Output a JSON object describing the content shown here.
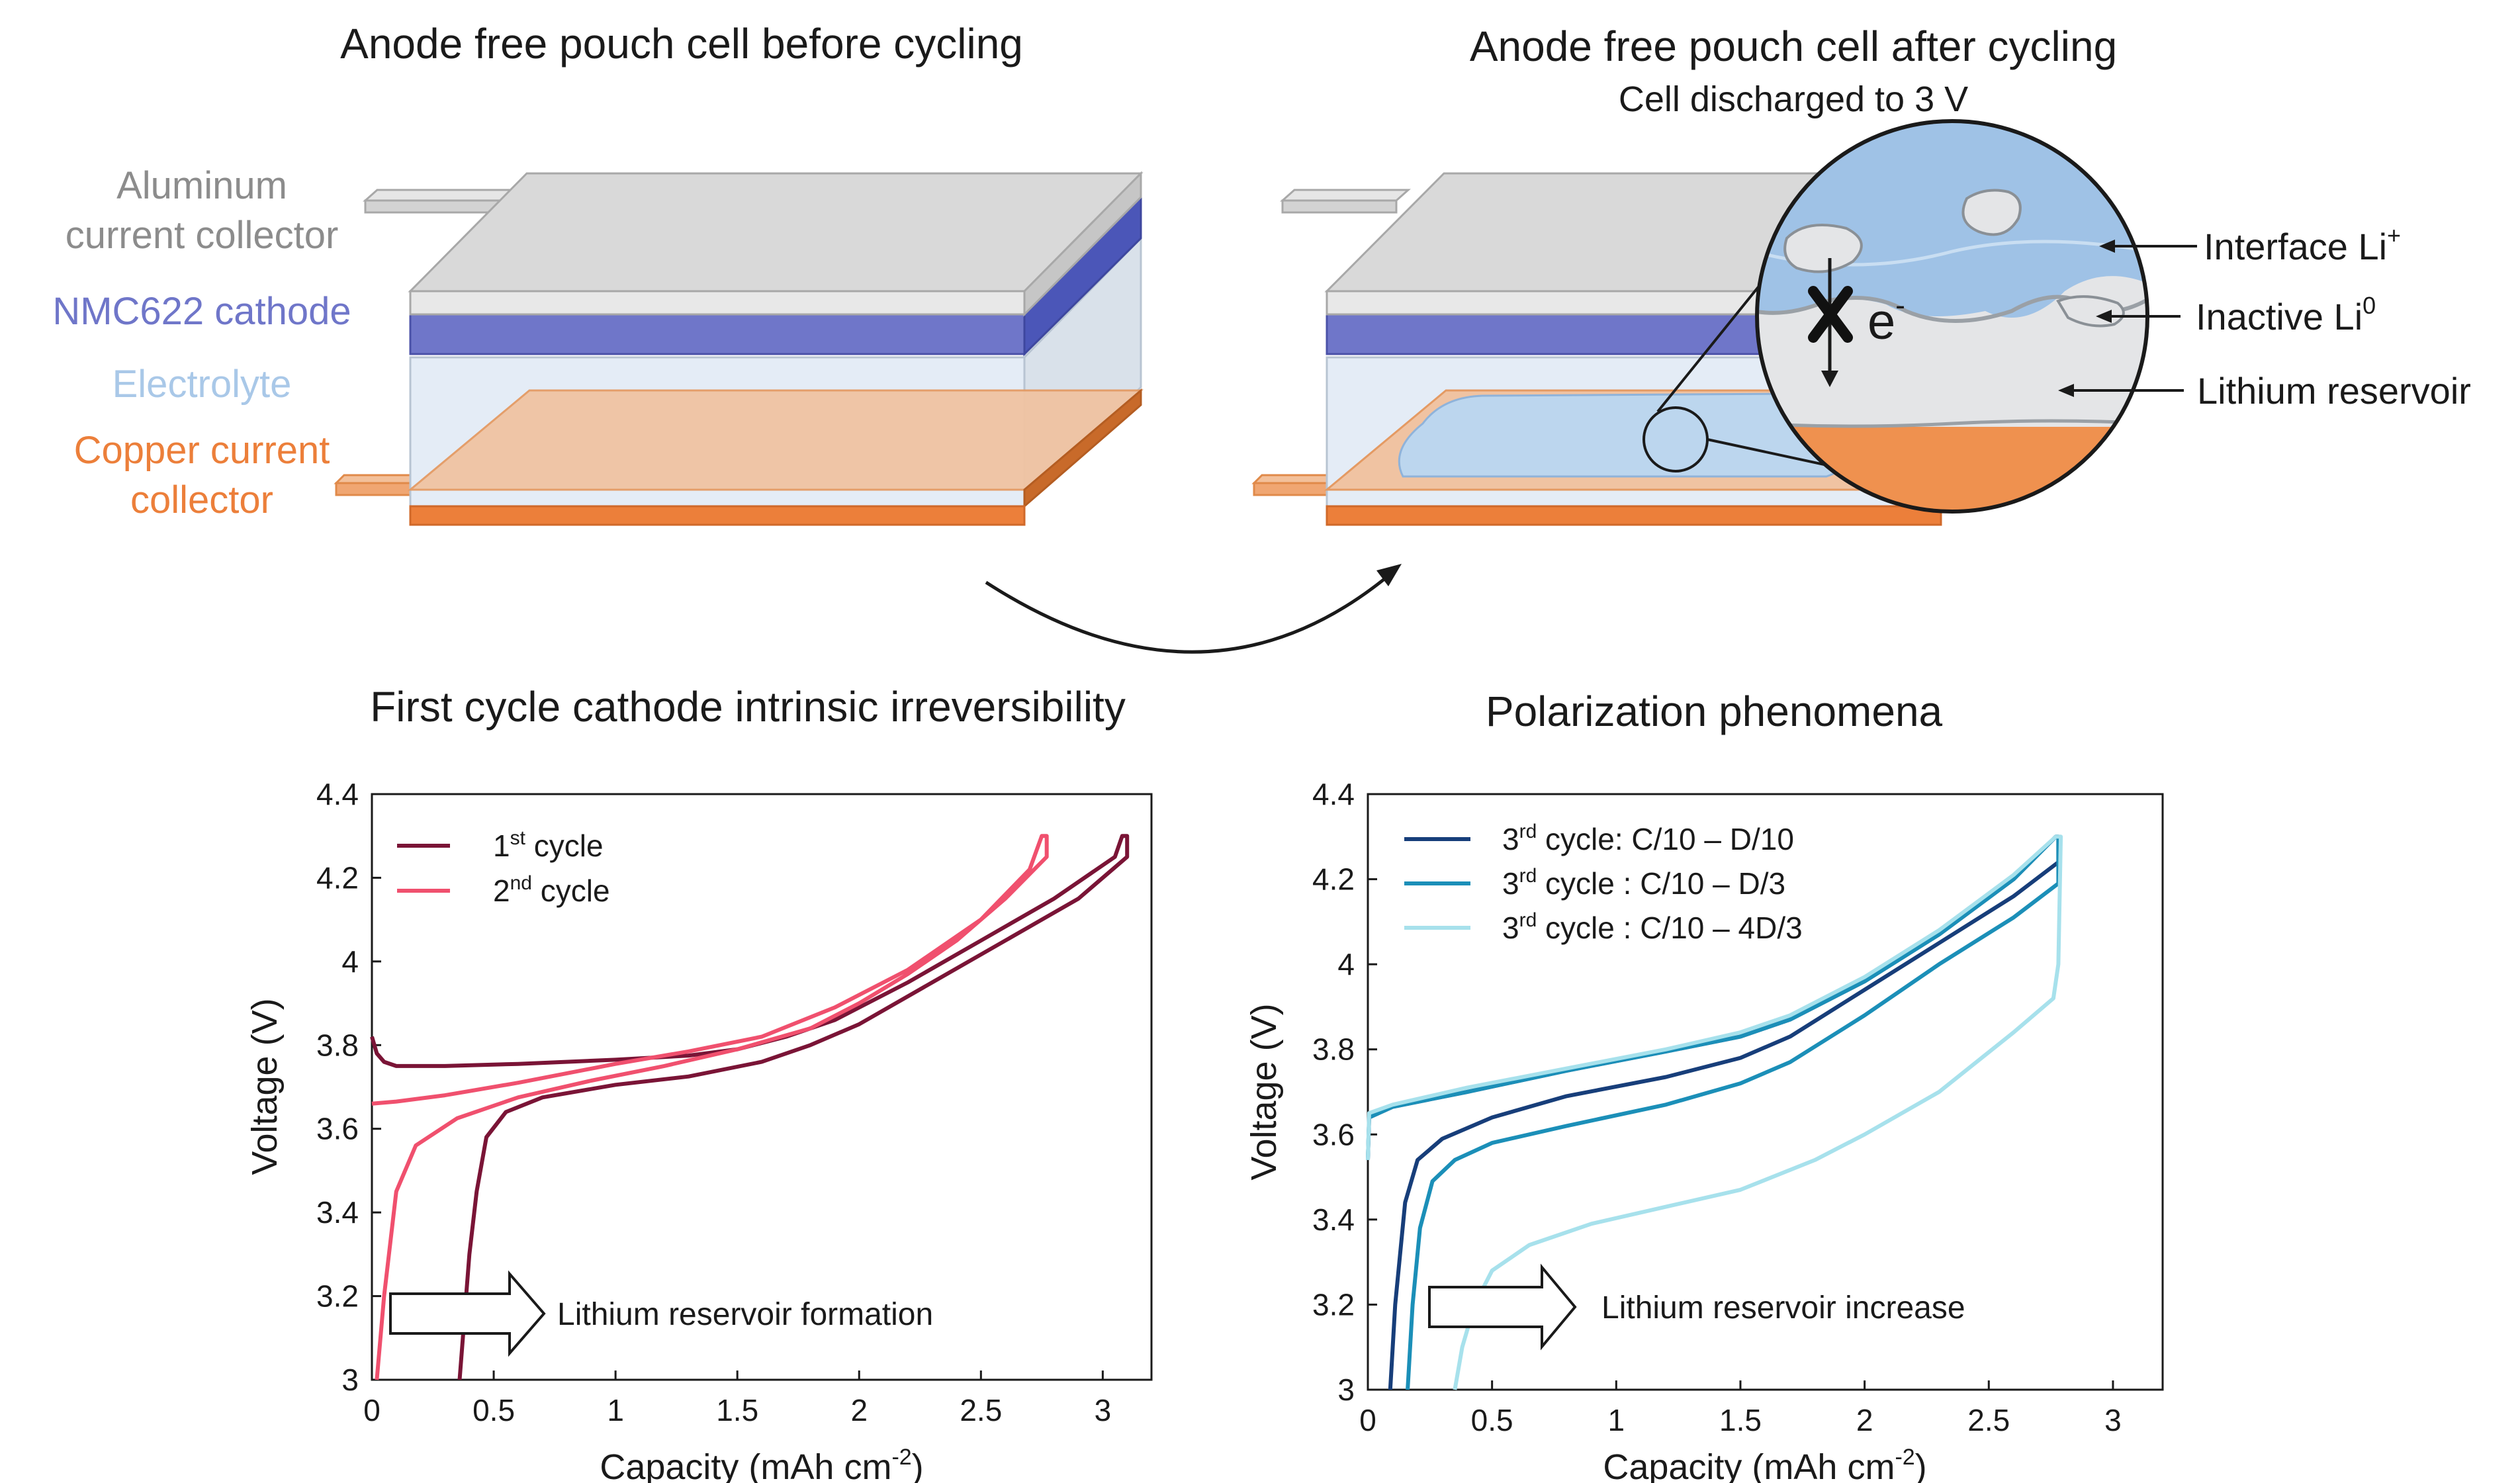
{
  "top_left": {
    "title": "Anode free pouch cell before cycling",
    "labels": {
      "aluminum_line1": "Aluminum",
      "aluminum_line2": "current collector",
      "cathode": "NMC622 cathode",
      "electrolyte": "Electrolyte",
      "copper_line1": "Copper current",
      "copper_line2": "collector"
    }
  },
  "top_right": {
    "title": "Anode free pouch cell after cycling",
    "subtitle": "Cell discharged to 3 V",
    "zoom": {
      "electron": "e",
      "electron_sup": "-",
      "interface": "Interface Li",
      "interface_sup": "+",
      "inactive": "Inactive  Li",
      "inactive_sup": "0",
      "reservoir": "Lithium reservoir"
    }
  },
  "colors": {
    "aluminum_text": "#8c8c8c",
    "cathode": "#6f76c9",
    "electrolyte_text": "#a9c8e8",
    "copper": "#ec7f3a",
    "cycle1": "#7a1436",
    "cycle2": "#f0506e",
    "rate_d10": "#173e7a",
    "rate_d3": "#1b8fb8",
    "rate_4d3": "#a7e1ec"
  },
  "chart_data": [
    {
      "type": "line",
      "title": "First cycle cathode intrinsic irreversibility",
      "xlabel": "Capacity (mAh cm",
      "xlabel_sup": "-2",
      "xlabel_end": ")",
      "ylabel": "Voltage (V)",
      "xlim": [
        0,
        3.2
      ],
      "ylim": [
        3,
        4.4
      ],
      "xticks": [
        0,
        0.5,
        1,
        1.5,
        2,
        2.5,
        3
      ],
      "xtick_labels": [
        "0",
        "0.5",
        "1",
        "1.5",
        "2",
        "2.5",
        "3"
      ],
      "yticks": [
        3,
        3.2,
        3.4,
        3.6,
        3.8,
        4,
        4.2,
        4.4
      ],
      "ytick_labels": [
        "3",
        "3.2",
        "3.4",
        "3.6",
        "3.8",
        "4",
        "4.2",
        "4.4"
      ],
      "annotation": "Lithium reservoir formation",
      "legend_position": "top-left",
      "series": [
        {
          "name_main": "1",
          "name_sup": "st",
          "name_rest": " cycle",
          "color": "#7a1436",
          "charge": [
            [
              0,
              3.82
            ],
            [
              0.02,
              3.78
            ],
            [
              0.05,
              3.76
            ],
            [
              0.1,
              3.75
            ],
            [
              0.3,
              3.75
            ],
            [
              0.6,
              3.755
            ],
            [
              1,
              3.765
            ],
            [
              1.3,
              3.775
            ],
            [
              1.5,
              3.79
            ],
            [
              1.7,
              3.82
            ],
            [
              1.9,
              3.86
            ],
            [
              2.2,
              3.95
            ],
            [
              2.5,
              4.05
            ],
            [
              2.8,
              4.15
            ],
            [
              3.05,
              4.25
            ],
            [
              3.08,
              4.3
            ]
          ],
          "discharge": [
            [
              3.1,
              4.3
            ],
            [
              3.1,
              4.25
            ],
            [
              2.9,
              4.15
            ],
            [
              2.6,
              4.05
            ],
            [
              2.3,
              3.95
            ],
            [
              2.0,
              3.85
            ],
            [
              1.8,
              3.8
            ],
            [
              1.6,
              3.76
            ],
            [
              1.3,
              3.725
            ],
            [
              1,
              3.705
            ],
            [
              0.7,
              3.675
            ],
            [
              0.55,
              3.64
            ],
            [
              0.47,
              3.58
            ],
            [
              0.43,
              3.45
            ],
            [
              0.4,
              3.3
            ],
            [
              0.38,
              3.15
            ],
            [
              0.36,
              3.0
            ]
          ]
        },
        {
          "name_main": "2",
          "name_sup": "nd",
          "name_rest": " cycle",
          "color": "#f0506e",
          "charge": [
            [
              0,
              3.66
            ],
            [
              0.1,
              3.665
            ],
            [
              0.3,
              3.68
            ],
            [
              0.6,
              3.71
            ],
            [
              1,
              3.755
            ],
            [
              1.3,
              3.785
            ],
            [
              1.6,
              3.82
            ],
            [
              1.9,
              3.89
            ],
            [
              2.2,
              3.98
            ],
            [
              2.5,
              4.1
            ],
            [
              2.7,
              4.22
            ],
            [
              2.75,
              4.3
            ]
          ],
          "discharge": [
            [
              2.77,
              4.3
            ],
            [
              2.77,
              4.25
            ],
            [
              2.6,
              4.15
            ],
            [
              2.4,
              4.05
            ],
            [
              2.2,
              3.97
            ],
            [
              2.0,
              3.9
            ],
            [
              1.8,
              3.84
            ],
            [
              1.5,
              3.79
            ],
            [
              1.2,
              3.75
            ],
            [
              0.9,
              3.715
            ],
            [
              0.6,
              3.675
            ],
            [
              0.35,
              3.625
            ],
            [
              0.18,
              3.56
            ],
            [
              0.1,
              3.45
            ],
            [
              0.05,
              3.2
            ],
            [
              0.02,
              3.0
            ]
          ]
        }
      ]
    },
    {
      "type": "line",
      "title": "Polarization phenomena",
      "xlabel": "Capacity (mAh cm",
      "xlabel_sup": "-2",
      "xlabel_end": ")",
      "ylabel": "Voltage (V)",
      "xlim": [
        0,
        3.2
      ],
      "ylim": [
        3,
        4.4
      ],
      "xticks": [
        0,
        0.5,
        1,
        1.5,
        2,
        2.5,
        3
      ],
      "xtick_labels": [
        "0",
        "0.5",
        "1",
        "1.5",
        "2",
        "2.5",
        "3"
      ],
      "yticks": [
        3,
        3.2,
        3.4,
        3.6,
        3.8,
        4,
        4.2,
        4.4
      ],
      "ytick_labels": [
        "3",
        "3.2",
        "3.4",
        "3.6",
        "3.8",
        "4",
        "4.2",
        "4.4"
      ],
      "annotation": "Lithium reservoir increase",
      "legend_position": "top-left",
      "series": [
        {
          "name_main": "3",
          "name_sup": "rd",
          "name_rest": " cycle: C/10 – D/10",
          "color": "#173e7a",
          "charge": [
            [
              0,
              3.54
            ],
            [
              0.005,
              3.64
            ],
            [
              0.1,
              3.665
            ],
            [
              0.4,
              3.7
            ],
            [
              0.8,
              3.75
            ],
            [
              1.2,
              3.795
            ],
            [
              1.5,
              3.83
            ],
            [
              1.7,
              3.87
            ],
            [
              2.0,
              3.96
            ],
            [
              2.3,
              4.07
            ],
            [
              2.6,
              4.2
            ],
            [
              2.77,
              4.3
            ]
          ],
          "discharge": [
            [
              2.78,
              4.3
            ],
            [
              2.78,
              4.24
            ],
            [
              2.6,
              4.16
            ],
            [
              2.3,
              4.05
            ],
            [
              2.0,
              3.94
            ],
            [
              1.7,
              3.83
            ],
            [
              1.5,
              3.78
            ],
            [
              1.2,
              3.735
            ],
            [
              0.8,
              3.69
            ],
            [
              0.5,
              3.64
            ],
            [
              0.3,
              3.59
            ],
            [
              0.2,
              3.54
            ],
            [
              0.15,
              3.44
            ],
            [
              0.11,
              3.2
            ],
            [
              0.09,
              3.0
            ]
          ]
        },
        {
          "name_main": "3",
          "name_sup": "rd",
          "name_rest": " cycle : C/10 – D/3",
          "color": "#1b8fb8",
          "charge": [
            [
              0,
              3.54
            ],
            [
              0.005,
              3.64
            ],
            [
              0.1,
              3.665
            ],
            [
              0.4,
              3.7
            ],
            [
              0.8,
              3.75
            ],
            [
              1.2,
              3.795
            ],
            [
              1.5,
              3.83
            ],
            [
              1.7,
              3.87
            ],
            [
              2.0,
              3.96
            ],
            [
              2.3,
              4.07
            ],
            [
              2.6,
              4.2
            ],
            [
              2.77,
              4.3
            ]
          ],
          "discharge": [
            [
              2.78,
              4.3
            ],
            [
              2.78,
              4.19
            ],
            [
              2.6,
              4.11
            ],
            [
              2.3,
              4.0
            ],
            [
              2.0,
              3.88
            ],
            [
              1.7,
              3.77
            ],
            [
              1.5,
              3.72
            ],
            [
              1.2,
              3.67
            ],
            [
              0.8,
              3.62
            ],
            [
              0.5,
              3.58
            ],
            [
              0.35,
              3.54
            ],
            [
              0.26,
              3.49
            ],
            [
              0.21,
              3.38
            ],
            [
              0.18,
              3.2
            ],
            [
              0.16,
              3.0
            ]
          ]
        },
        {
          "name_main": "3",
          "name_sup": "rd",
          "name_rest": " cycle : C/10 – 4D/3",
          "color": "#a7e1ec",
          "charge": [
            [
              0,
              3.54
            ],
            [
              0.005,
              3.65
            ],
            [
              0.1,
              3.67
            ],
            [
              0.4,
              3.71
            ],
            [
              0.8,
              3.755
            ],
            [
              1.2,
              3.8
            ],
            [
              1.5,
              3.84
            ],
            [
              1.7,
              3.88
            ],
            [
              2.0,
              3.97
            ],
            [
              2.3,
              4.08
            ],
            [
              2.6,
              4.21
            ],
            [
              2.77,
              4.3
            ]
          ],
          "discharge": [
            [
              2.79,
              4.3
            ],
            [
              2.78,
              4.0
            ],
            [
              2.76,
              3.92
            ],
            [
              2.6,
              3.84
            ],
            [
              2.3,
              3.7
            ],
            [
              2.0,
              3.6
            ],
            [
              1.8,
              3.54
            ],
            [
              1.5,
              3.47
            ],
            [
              1.2,
              3.43
            ],
            [
              0.9,
              3.39
            ],
            [
              0.65,
              3.34
            ],
            [
              0.5,
              3.28
            ],
            [
              0.43,
              3.2
            ],
            [
              0.38,
              3.1
            ],
            [
              0.35,
              3.0
            ]
          ]
        }
      ]
    }
  ]
}
